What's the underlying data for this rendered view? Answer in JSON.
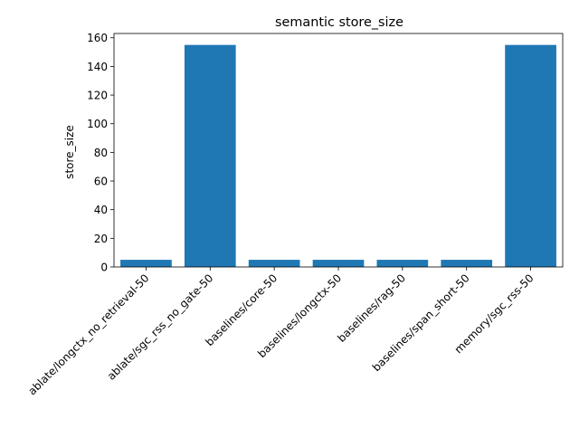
{
  "chart_data": {
    "type": "bar",
    "title": "semantic store_size",
    "xlabel": "",
    "ylabel": "store_size",
    "categories": [
      "ablate/longctx_no_retrieval-50",
      "ablate/sgc_rss_no_gate-50",
      "baselines/core-50",
      "baselines/longctx-50",
      "baselines/rag-50",
      "baselines/span_short-50",
      "memory/sgc_rss-50"
    ],
    "values": [
      5,
      155,
      5,
      5,
      5,
      5,
      155
    ],
    "ylim": [
      0,
      163
    ],
    "yticks": [
      0,
      20,
      40,
      60,
      80,
      100,
      120,
      140,
      160
    ],
    "bar_color": "#1f77b4",
    "grid": false,
    "legend": "none"
  }
}
